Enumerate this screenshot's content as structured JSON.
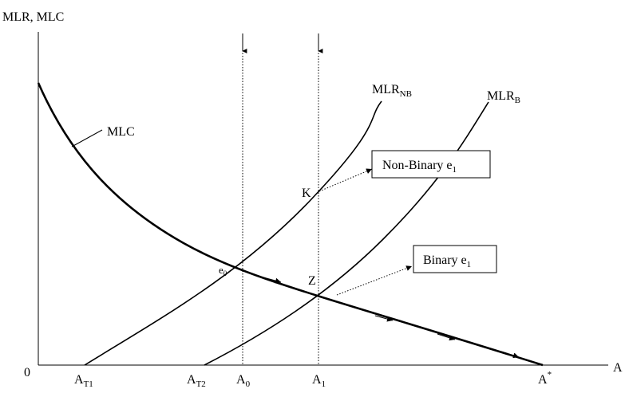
{
  "axes": {
    "y_label": "MLR, MLC",
    "x_label": "A",
    "origin_label": "0"
  },
  "curves": {
    "mlc": {
      "label": "MLC"
    },
    "mlr_nb": {
      "label_main": "MLR",
      "label_sub": "NB"
    },
    "mlr_b": {
      "label_main": "MLR",
      "label_sub": "B"
    }
  },
  "x_ticks": [
    {
      "main": "A",
      "sub": "T1",
      "sup": ""
    },
    {
      "main": "A",
      "sub": "T2",
      "sup": ""
    },
    {
      "main": "A",
      "sub": "0",
      "sup": ""
    },
    {
      "main": "A",
      "sub": "1",
      "sup": ""
    },
    {
      "main": "A",
      "sub": "",
      "sup": "*"
    }
  ],
  "points": {
    "e0": {
      "main": "e",
      "sub": "0"
    },
    "k": {
      "main": "K"
    },
    "z": {
      "main": "Z"
    }
  },
  "boxes": {
    "non_binary": {
      "main": "Non-Binary e",
      "sub": "1"
    },
    "binary": {
      "main": "Binary e",
      "sub": "1"
    }
  }
}
